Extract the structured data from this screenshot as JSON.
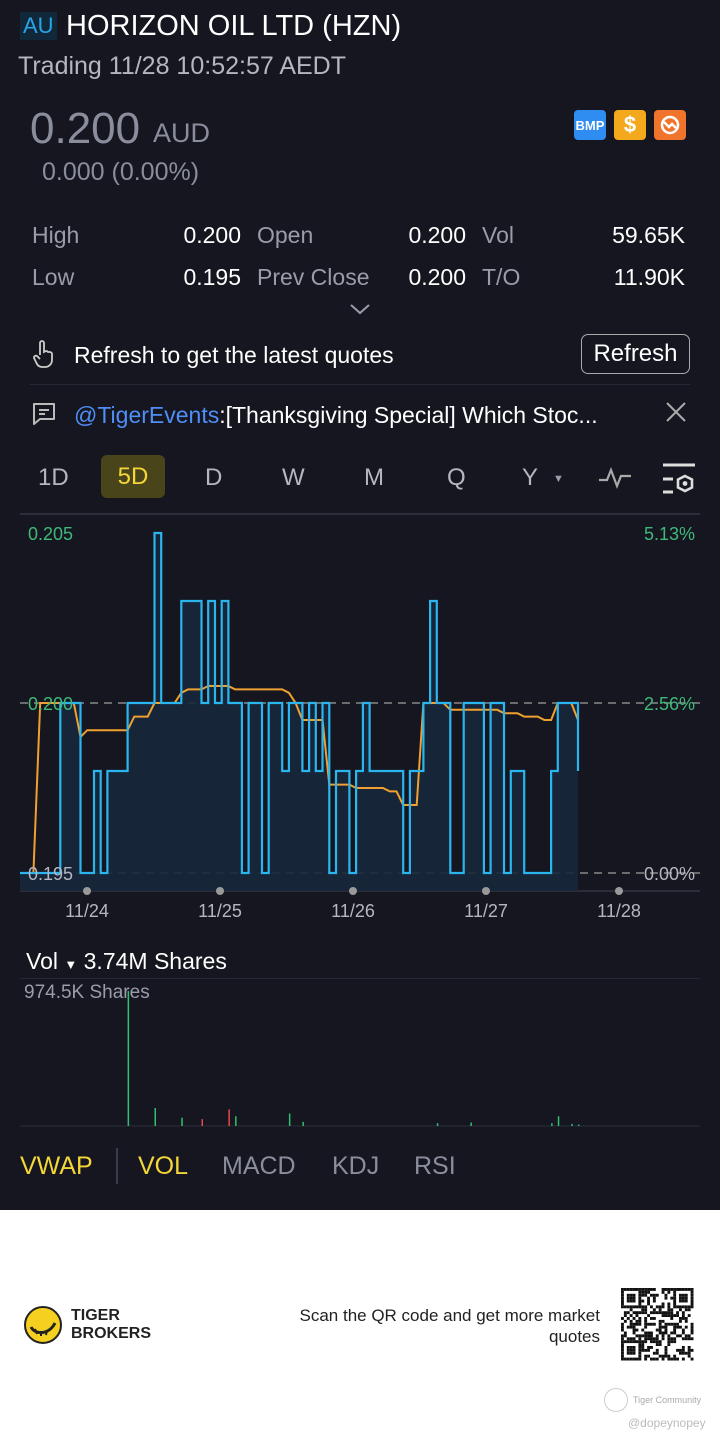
{
  "header": {
    "market": "AU",
    "title": "HORIZON OIL LTD (HZN)",
    "status": "Trading 11/28 10:52:57 AEDT"
  },
  "quote": {
    "price": "0.200",
    "currency": "AUD",
    "change": "0.000 (0.00%)",
    "badges": [
      {
        "label": "BMP",
        "color": "#2f8cf0"
      },
      {
        "label": "$",
        "color": "#f4a81c"
      },
      {
        "icon": "no-short-icon",
        "color": "#f0742c"
      }
    ]
  },
  "stats": [
    {
      "label": "High",
      "value": "0.200"
    },
    {
      "label": "Open",
      "value": "0.200"
    },
    {
      "label": "Vol",
      "value": "59.65K"
    },
    {
      "label": "Low",
      "value": "0.195"
    },
    {
      "label": "Prev Close",
      "value": "0.200"
    },
    {
      "label": "T/O",
      "value": "11.90K"
    }
  ],
  "refresh": {
    "message": "Refresh to get the latest quotes",
    "button": "Refresh"
  },
  "news": {
    "author": "@TigerEvents",
    "text": ":[Thanksgiving Special] Which Stoc..."
  },
  "periods": [
    "1D",
    "5D",
    "D",
    "W",
    "M",
    "Q",
    "Y"
  ],
  "selected_period": "5D",
  "chart_data": {
    "type": "line",
    "y_left_ticks": [
      "0.205",
      "0.200",
      "0.195"
    ],
    "y_right_ticks": [
      "5.13%",
      "2.56%",
      "0.00%"
    ],
    "x_ticks": [
      "11/24",
      "11/25",
      "11/26",
      "11/27",
      "11/28"
    ],
    "ylim": [
      0.195,
      0.205
    ],
    "prev_close": 0.2,
    "price": [
      0.195,
      0.195,
      0.195,
      0.195,
      0.195,
      0.195,
      0.2,
      0.2,
      0.2,
      0.195,
      0.195,
      0.198,
      0.195,
      0.198,
      0.198,
      0.198,
      0.2,
      0.2,
      0.2,
      0.2,
      0.205,
      0.2,
      0.2,
      0.2,
      0.203,
      0.203,
      0.203,
      0.2,
      0.203,
      0.2,
      0.203,
      0.2,
      0.2,
      0.195,
      0.2,
      0.2,
      0.195,
      0.2,
      0.2,
      0.198,
      0.2,
      0.2,
      0.198,
      0.2,
      0.198,
      0.2,
      0.195,
      0.198,
      0.198,
      0.195,
      0.198,
      0.2,
      0.198,
      0.198,
      0.198,
      0.198,
      0.198,
      0.195,
      0.198,
      0.198,
      0.2,
      0.203,
      0.2,
      0.2,
      0.195,
      0.195,
      0.2,
      0.2,
      0.2,
      0.195,
      0.2,
      0.2,
      0.195,
      0.198,
      0.198,
      0.195,
      0.195,
      0.195,
      0.195,
      0.198,
      0.2,
      0.2,
      0.2,
      0.198
    ],
    "vwap": [
      0.195,
      0.195,
      0.195,
      0.2,
      0.2,
      0.2,
      0.2,
      0.2,
      0.2,
      0.199,
      0.1992,
      0.1992,
      0.1992,
      0.1992,
      0.1992,
      0.1992,
      0.1992,
      0.1996,
      0.1996,
      0.1996,
      0.2,
      0.2,
      0.2,
      0.2,
      0.2003,
      0.2004,
      0.2004,
      0.2004,
      0.2005,
      0.2005,
      0.2005,
      0.2005,
      0.2004,
      0.2004,
      0.2004,
      0.2004,
      0.2004,
      0.2004,
      0.2004,
      0.2004,
      0.2003,
      0.2,
      0.1995,
      0.1995,
      0.1995,
      0.1995,
      0.1976,
      0.1976,
      0.1976,
      0.1976,
      0.1975,
      0.1975,
      0.1975,
      0.1975,
      0.1975,
      0.1974,
      0.1974,
      0.197,
      0.197,
      0.197,
      0.2,
      0.2,
      0.2,
      0.2,
      0.1998,
      0.1998,
      0.1998,
      0.1998,
      0.1998,
      0.1998,
      0.1998,
      0.1998,
      0.1997,
      0.1997,
      0.1997,
      0.1996,
      0.1996,
      0.1996,
      0.1995,
      0.1995,
      0.2,
      0.2,
      0.2,
      0.1995
    ],
    "series_colors": {
      "price": "#2bb5ee",
      "vwap": "#f0a030"
    }
  },
  "volume": {
    "label": "Vol",
    "total": "3.74M Shares",
    "max_label": "974.5K Shares",
    "bars": [
      0,
      0,
      0,
      0,
      0,
      0,
      0,
      0,
      0,
      0,
      0,
      0,
      0,
      0,
      0,
      0,
      974.5,
      0,
      0,
      0,
      130,
      0,
      0,
      0,
      60,
      0,
      0,
      -50,
      0,
      0,
      0,
      -120,
      70,
      0,
      0,
      0,
      0,
      0,
      0,
      0,
      90,
      0,
      30,
      0,
      0,
      0,
      0,
      0,
      0,
      0,
      0,
      0,
      0,
      0,
      0,
      0,
      0,
      0,
      0,
      0,
      0,
      0,
      20,
      0,
      0,
      0,
      0,
      25,
      0,
      0,
      0,
      0,
      0,
      0,
      0,
      0,
      0,
      0,
      0,
      20,
      70,
      0,
      15,
      10
    ],
    "up_color": "#2fbf71",
    "down_color": "#e5484d"
  },
  "indicators": [
    {
      "label": "VWAP",
      "active": true
    },
    {
      "label": "VOL",
      "active": true
    },
    {
      "label": "MACD",
      "active": false
    },
    {
      "label": "KDJ",
      "active": false
    },
    {
      "label": "RSI",
      "active": false
    }
  ],
  "footer": {
    "brand_line1": "TIGER",
    "brand_line2": "BROKERS",
    "qr_text": "Scan the QR code and get more market quotes",
    "watermark": "Tiger Community",
    "user": "@dopeynopey"
  }
}
